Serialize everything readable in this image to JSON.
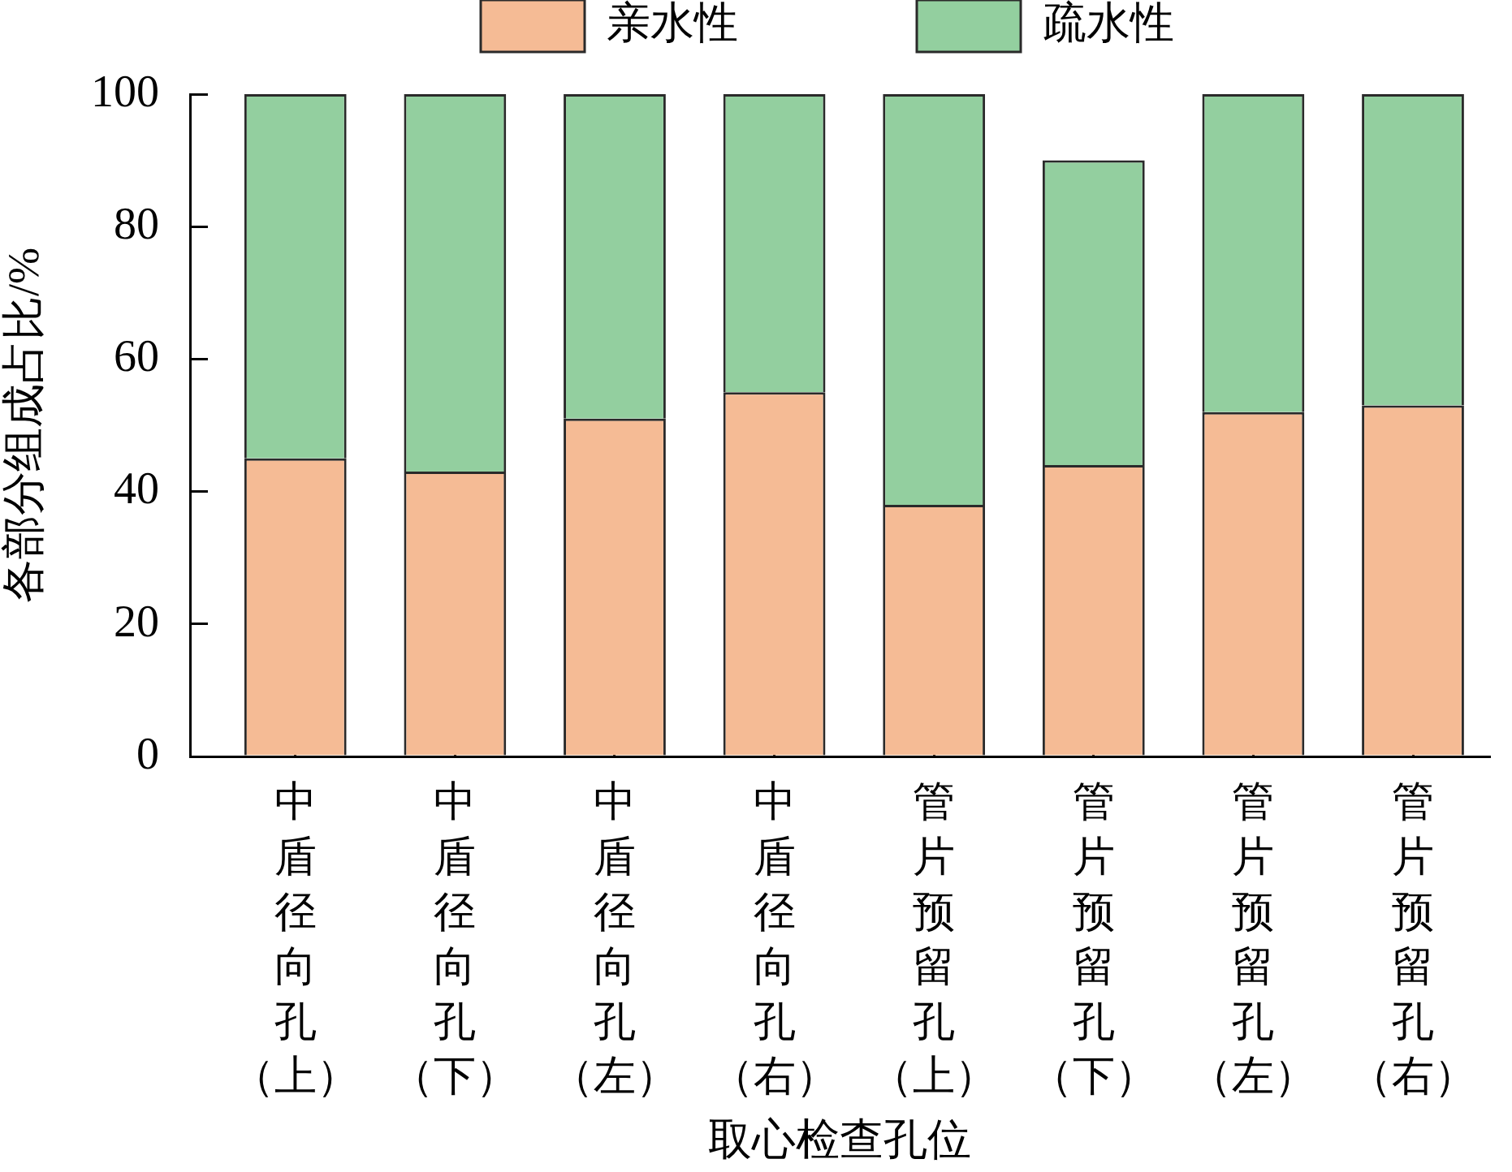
{
  "chart_data": {
    "type": "bar",
    "stacked": true,
    "categories": [
      "中盾径向孔（上）",
      "中盾径向孔（下）",
      "中盾径向孔（左）",
      "中盾径向孔（右）",
      "管片预留孔（上）",
      "管片预留孔（下）",
      "管片预留孔（左）",
      "管片预留孔（右）"
    ],
    "series": [
      {
        "name": "亲水性",
        "color": "#f5bb95",
        "values": [
          45,
          43,
          51,
          55,
          38,
          44,
          52,
          53
        ]
      },
      {
        "name": "疏水性",
        "color": "#93cf9f",
        "values": [
          55,
          57,
          49,
          45,
          62,
          46,
          48,
          47
        ]
      }
    ],
    "xlabel": "取心检查孔位",
    "ylabel": "各部分组成占比/%",
    "ylim": [
      0,
      100
    ],
    "yticks": [
      0,
      20,
      40,
      60,
      80,
      100
    ],
    "legend": "top"
  }
}
